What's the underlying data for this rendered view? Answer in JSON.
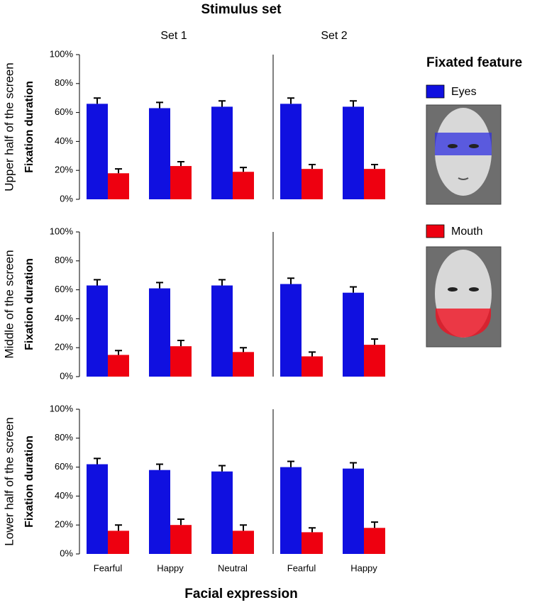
{
  "figure": {
    "title": "Stimulus set",
    "x_label": "Facial expression",
    "column_titles": [
      "Set 1",
      "Set 2"
    ],
    "row_titles": [
      "Upper half of the screen",
      "Middle of the screen",
      "Lower half of the screen"
    ],
    "legend_title": "Fixated feature"
  },
  "chart_data": [
    {
      "type": "bar",
      "ylabel": "Fixation duration",
      "categories": [
        null,
        null,
        null
      ],
      "series": [
        {
          "name": "Eyes",
          "color": "#1010e0",
          "values": [
            66,
            63,
            64
          ],
          "errors": [
            4,
            4,
            4
          ]
        },
        {
          "name": "Mouth",
          "color": "#ee0010",
          "values": [
            18,
            23,
            19
          ],
          "errors": [
            3,
            3,
            3
          ]
        }
      ],
      "ylim": [
        0,
        100
      ],
      "yticks": [
        {
          "value": 0,
          "label": "0%"
        },
        {
          "value": 20,
          "label": "20%"
        },
        {
          "value": 40,
          "label": "40%"
        },
        {
          "value": 60,
          "label": "60%"
        },
        {
          "value": 80,
          "label": "80%"
        },
        {
          "value": 100,
          "label": "100%"
        }
      ]
    },
    {
      "type": "bar",
      "categories": [
        null,
        null
      ],
      "series": [
        {
          "name": "Eyes",
          "color": "#1010e0",
          "values": [
            66,
            64
          ],
          "errors": [
            4,
            4
          ]
        },
        {
          "name": "Mouth",
          "color": "#ee0010",
          "values": [
            21,
            21
          ],
          "errors": [
            3,
            3
          ]
        }
      ],
      "ylim": [
        0,
        100
      ]
    },
    {
      "type": "bar",
      "ylabel": "Fixation duration",
      "categories": [
        null,
        null,
        null
      ],
      "series": [
        {
          "name": "Eyes",
          "color": "#1010e0",
          "values": [
            63,
            61,
            63
          ],
          "errors": [
            4,
            4,
            4
          ]
        },
        {
          "name": "Mouth",
          "color": "#ee0010",
          "values": [
            15,
            21,
            17
          ],
          "errors": [
            3,
            4,
            3
          ]
        }
      ],
      "ylim": [
        0,
        100
      ],
      "yticks": [
        {
          "value": 0,
          "label": "0%"
        },
        {
          "value": 20,
          "label": "20%"
        },
        {
          "value": 40,
          "label": "40%"
        },
        {
          "value": 60,
          "label": "60%"
        },
        {
          "value": 80,
          "label": "80%"
        },
        {
          "value": 100,
          "label": "100%"
        }
      ]
    },
    {
      "type": "bar",
      "categories": [
        null,
        null
      ],
      "series": [
        {
          "name": "Eyes",
          "color": "#1010e0",
          "values": [
            64,
            58
          ],
          "errors": [
            4,
            4
          ]
        },
        {
          "name": "Mouth",
          "color": "#ee0010",
          "values": [
            14,
            22
          ],
          "errors": [
            3,
            4
          ]
        }
      ],
      "ylim": [
        0,
        100
      ]
    },
    {
      "type": "bar",
      "ylabel": "Fixation duration",
      "categories": [
        "Fearful",
        "Happy",
        "Neutral"
      ],
      "series": [
        {
          "name": "Eyes",
          "color": "#1010e0",
          "values": [
            62,
            58,
            57
          ],
          "errors": [
            4,
            4,
            4
          ]
        },
        {
          "name": "Mouth",
          "color": "#ee0010",
          "values": [
            16,
            20,
            16
          ],
          "errors": [
            4,
            4,
            4
          ]
        }
      ],
      "ylim": [
        0,
        100
      ],
      "yticks": [
        {
          "value": 0,
          "label": "0%"
        },
        {
          "value": 20,
          "label": "20%"
        },
        {
          "value": 40,
          "label": "40%"
        },
        {
          "value": 60,
          "label": "60%"
        },
        {
          "value": 80,
          "label": "80%"
        },
        {
          "value": 100,
          "label": "100%"
        }
      ]
    },
    {
      "type": "bar",
      "categories": [
        "Fearful",
        "Happy"
      ],
      "series": [
        {
          "name": "Eyes",
          "color": "#1010e0",
          "values": [
            60,
            59
          ],
          "errors": [
            4,
            4
          ]
        },
        {
          "name": "Mouth",
          "color": "#ee0010",
          "values": [
            15,
            18
          ],
          "errors": [
            3,
            4
          ]
        }
      ],
      "ylim": [
        0,
        100
      ]
    }
  ]
}
